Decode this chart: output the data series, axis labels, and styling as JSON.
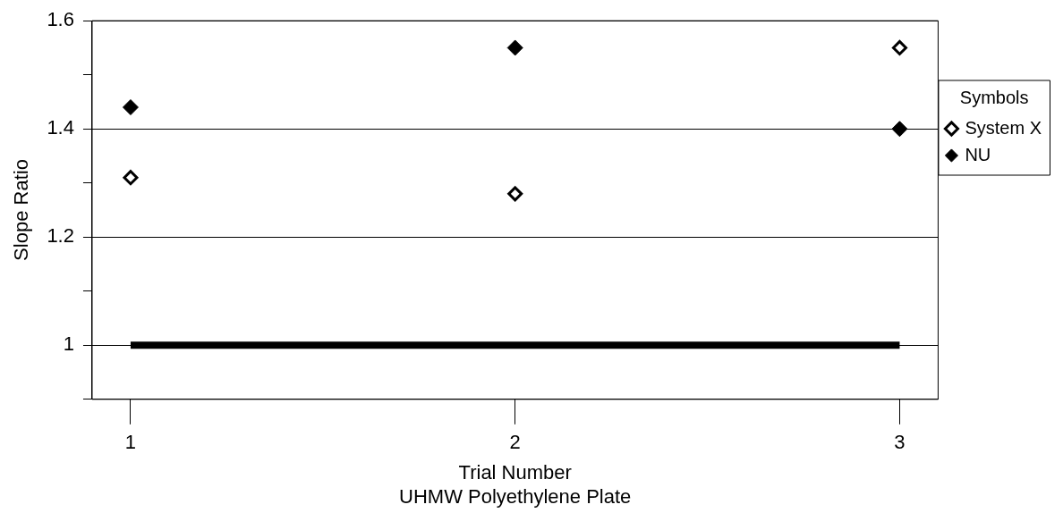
{
  "chart_data": {
    "type": "scatter",
    "xlabel": "Trial Number",
    "ylabel": "Slope Ratio",
    "annotations": [
      "UHMW Polyethylene Plate"
    ],
    "legend_title": "Symbols",
    "legend": "right",
    "marker": "diamond",
    "grid": "y",
    "xlim": [
      0.9,
      3.1
    ],
    "xticks": [
      1,
      2,
      3
    ],
    "ylim": [
      0.9,
      1.6
    ],
    "yticks": [
      {
        "value": 0.9,
        "label": null
      },
      1,
      {
        "value": 1.1,
        "label": null
      },
      1.2,
      {
        "value": 1.3,
        "label": null
      },
      1.4,
      {
        "value": 1.5,
        "label": null
      },
      1.6
    ],
    "x": [
      1,
      2,
      3
    ],
    "series": [
      {
        "name": "System X",
        "color": "#ffffff",
        "values": [
          1.31,
          1.28,
          1.55
        ]
      },
      {
        "name": "NU",
        "color": "#000000",
        "values": [
          1.44,
          1.55,
          1.4
        ]
      },
      {
        "type": "line",
        "marker": "none",
        "color": "#000000",
        "x": [
          1,
          3
        ],
        "values": [
          1,
          1
        ]
      }
    ]
  }
}
